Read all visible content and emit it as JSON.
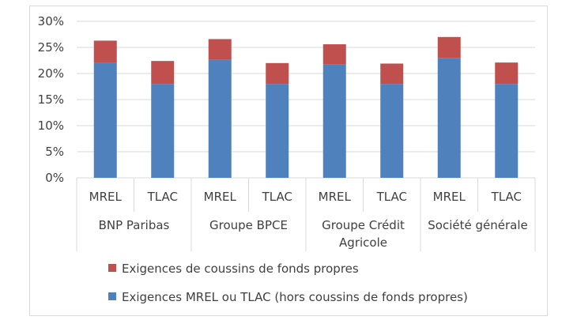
{
  "chart_data": {
    "type": "bar",
    "stacked": true,
    "groups": [
      "BNP Paribas",
      "Groupe BPCE",
      "Groupe Crédit Agricole",
      "Société générale"
    ],
    "group_label_lines": [
      [
        "BNP Paribas"
      ],
      [
        "Groupe BPCE"
      ],
      [
        "Groupe Crédit",
        "Agricole"
      ],
      [
        "Société générale"
      ]
    ],
    "categories": [
      "MREL",
      "TLAC",
      "MREL",
      "TLAC",
      "MREL",
      "TLAC",
      "MREL",
      "TLAC"
    ],
    "series": [
      {
        "name": "Exigences MREL ou TLAC (hors coussins de fonds propres)",
        "color": "#4f81bd",
        "values": [
          22.0,
          18.0,
          22.6,
          18.0,
          21.7,
          18.0,
          23.0,
          18.0
        ]
      },
      {
        "name": "Exigences de coussins de fonds propres",
        "color": "#c0504d",
        "values": [
          4.3,
          4.4,
          4.0,
          4.0,
          3.9,
          3.9,
          4.0,
          4.1
        ]
      }
    ],
    "legend_order": [
      1,
      0
    ],
    "ylim": [
      0,
      30
    ],
    "yticks": [
      0,
      5,
      10,
      15,
      20,
      25,
      30
    ],
    "ytick_labels": [
      "0%",
      "5%",
      "10%",
      "15%",
      "20%",
      "25%",
      "30%"
    ],
    "grid": true,
    "legend_position": "bottom",
    "title": "",
    "xlabel": "",
    "ylabel": ""
  }
}
